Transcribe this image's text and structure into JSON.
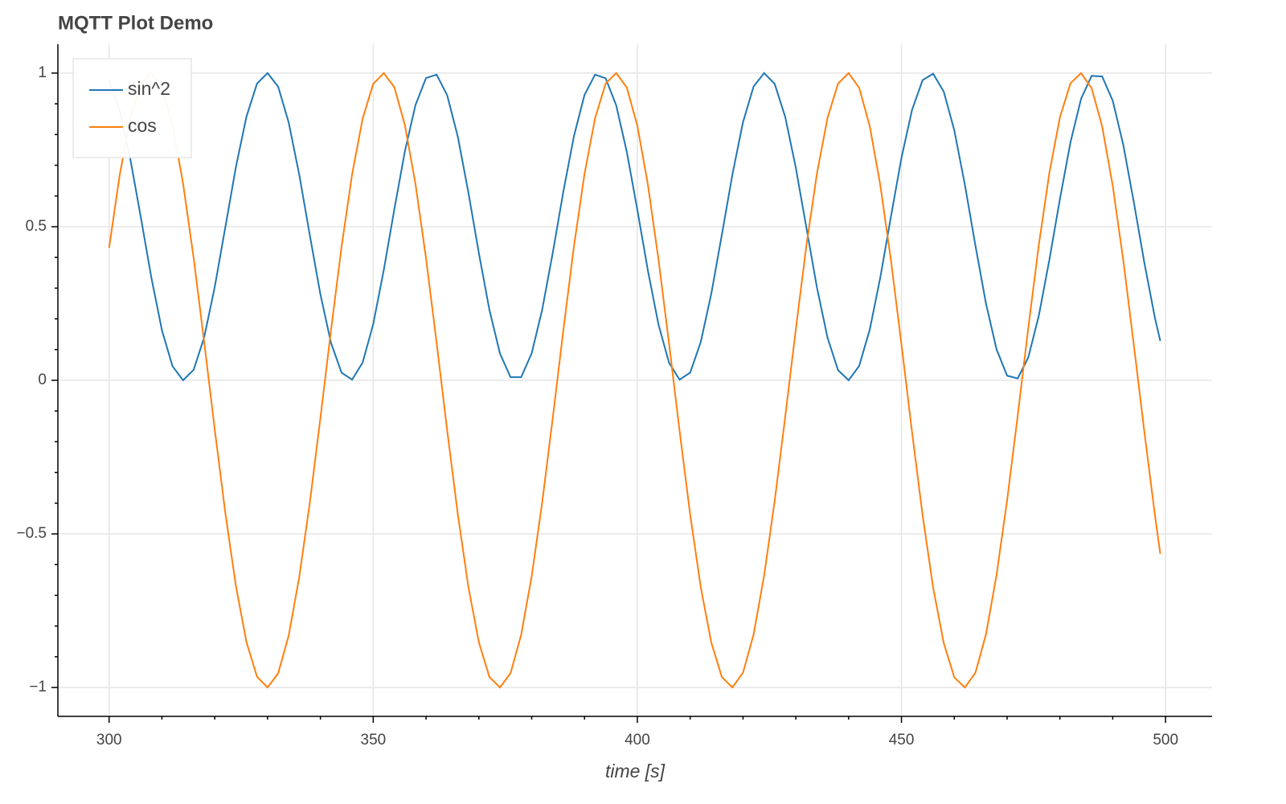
{
  "chart_data": {
    "type": "line",
    "title": "MQTT Plot Demo",
    "x_label": "time [s]",
    "x": [
      300,
      302,
      304,
      306,
      308,
      310,
      312,
      314,
      316,
      318,
      320,
      322,
      324,
      326,
      328,
      330,
      332,
      334,
      336,
      338,
      340,
      342,
      344,
      346,
      348,
      350,
      352,
      354,
      356,
      358,
      360,
      362,
      364,
      366,
      368,
      370,
      372,
      374,
      376,
      378,
      380,
      382,
      384,
      386,
      388,
      390,
      392,
      394,
      396,
      398,
      400,
      402,
      404,
      406,
      408,
      410,
      412,
      414,
      416,
      418,
      420,
      422,
      424,
      426,
      428,
      430,
      432,
      434,
      436,
      438,
      440,
      442,
      444,
      446,
      448,
      450,
      452,
      454,
      456,
      458,
      460,
      462,
      464,
      466,
      468,
      470,
      472,
      474,
      476,
      478,
      480,
      482,
      484,
      486,
      488,
      490,
      492,
      494,
      496,
      498,
      499
    ],
    "series": [
      {
        "name": "sin^2",
        "color": "#1f77b4",
        "values": [
          0.976,
          0.879,
          0.722,
          0.531,
          0.334,
          0.163,
          0.046,
          0.0,
          0.034,
          0.14,
          0.304,
          0.498,
          0.694,
          0.858,
          0.966,
          1.0,
          0.956,
          0.839,
          0.669,
          0.472,
          0.28,
          0.122,
          0.025,
          0.002,
          0.058,
          0.183,
          0.359,
          0.557,
          0.746,
          0.896,
          0.984,
          0.995,
          0.928,
          0.794,
          0.613,
          0.414,
          0.229,
          0.087,
          0.01,
          0.01,
          0.088,
          0.231,
          0.416,
          0.615,
          0.795,
          0.929,
          0.995,
          0.983,
          0.895,
          0.744,
          0.555,
          0.357,
          0.182,
          0.057,
          0.002,
          0.025,
          0.124,
          0.282,
          0.474,
          0.67,
          0.84,
          0.956,
          1.0,
          0.965,
          0.857,
          0.692,
          0.497,
          0.302,
          0.139,
          0.033,
          0.0,
          0.047,
          0.165,
          0.335,
          0.532,
          0.724,
          0.88,
          0.977,
          0.998,
          0.94,
          0.814,
          0.637,
          0.439,
          0.25,
          0.101,
          0.015,
          0.006,
          0.074,
          0.21,
          0.392,
          0.59,
          0.775,
          0.916,
          0.991,
          0.989,
          0.91,
          0.766,
          0.579,
          0.381,
          0.202,
          0.128
        ]
      },
      {
        "name": "cos",
        "color": "#ff7f0e",
        "values": [
          0.431,
          0.668,
          0.851,
          0.964,
          1.0,
          0.954,
          0.831,
          0.641,
          0.399,
          0.124,
          -0.16,
          -0.432,
          -0.669,
          -0.852,
          -0.965,
          -1.0,
          -0.954,
          -0.831,
          -0.64,
          -0.398,
          -0.123,
          0.162,
          0.434,
          0.67,
          0.852,
          0.965,
          1.0,
          0.954,
          0.83,
          0.639,
          0.397,
          0.122,
          -0.163,
          -0.434,
          -0.671,
          -0.853,
          -0.966,
          -1.0,
          -0.953,
          -0.829,
          -0.638,
          -0.396,
          -0.121,
          0.164,
          0.436,
          0.672,
          0.853,
          0.966,
          1.0,
          0.953,
          0.829,
          0.637,
          0.394,
          0.12,
          -0.165,
          -0.437,
          -0.673,
          -0.854,
          -0.966,
          -1.0,
          -0.952,
          -0.828,
          -0.636,
          -0.393,
          -0.118,
          0.166,
          0.438,
          0.673,
          0.854,
          0.966,
          1.0,
          0.952,
          0.827,
          0.635,
          0.392,
          0.117,
          -0.168,
          -0.439,
          -0.675,
          -0.855,
          -0.967,
          -1.0,
          -0.952,
          -0.827,
          -0.634,
          -0.391,
          -0.116,
          0.169,
          0.44,
          0.675,
          0.856,
          0.967,
          1.0,
          0.951,
          0.826,
          0.633,
          0.39,
          0.114,
          -0.17,
          -0.441,
          -0.565
        ]
      }
    ],
    "xlim": [
      290.3,
      508.8
    ],
    "ylim": [
      -1.094,
      1.094
    ],
    "xticks": [
      300,
      350,
      400,
      450,
      500
    ],
    "yticks": [
      {
        "value": -1,
        "label": "−1"
      },
      {
        "value": -0.5,
        "label": "−0.5"
      },
      0,
      0.5,
      1
    ],
    "xminorticks": [
      310,
      320,
      330,
      340,
      360,
      370,
      380,
      390,
      410,
      420,
      430,
      440,
      460,
      470,
      480,
      490
    ],
    "yminorticks": [
      -0.9,
      -0.8,
      -0.7,
      -0.6,
      -0.4,
      -0.3,
      -0.2,
      -0.1,
      0.1,
      0.2,
      0.3,
      0.4,
      0.6,
      0.7,
      0.8,
      0.9
    ],
    "grid": true,
    "legend": "top-left"
  }
}
